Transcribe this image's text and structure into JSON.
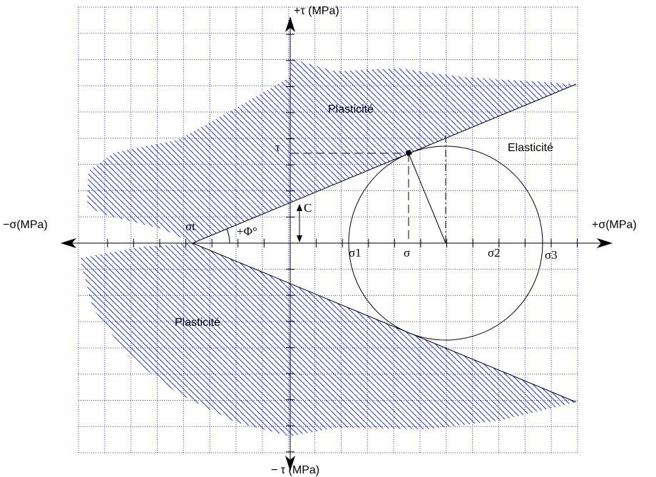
{
  "axes": {
    "tau_pos": "+τ (MPa)",
    "tau_neg": "− τ (MPa)",
    "sigma_neg": "−σ(MPa)",
    "sigma_pos": "+σ(MPa)"
  },
  "regions": {
    "plastic_upper": "Plasticité",
    "plastic_lower": "Plasticité",
    "elastic": "Elasticité"
  },
  "symbols": {
    "tau": "τ",
    "cohesion": "C",
    "sigma_t": "σt",
    "phi": "+Φ°",
    "sigma_1": "σ1",
    "sigma": "σ",
    "sigma_2": "σ2",
    "sigma_3": "σ3"
  }
}
